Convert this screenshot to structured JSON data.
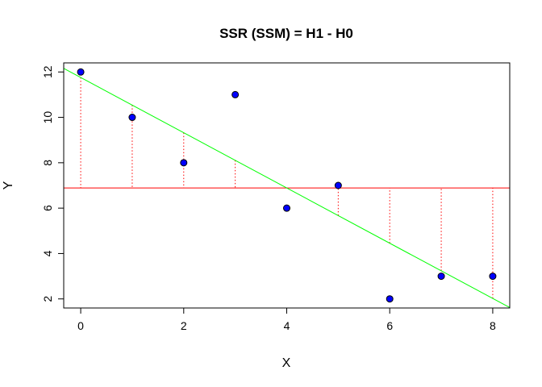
{
  "chart_data": {
    "type": "scatter",
    "title": "SSR (SSM) = H1 - H0",
    "xlabel": "X",
    "ylabel": "Y",
    "xlim": [
      -0.33,
      8.33
    ],
    "ylim": [
      1.6,
      12.4
    ],
    "x_ticks": [
      0,
      2,
      4,
      6,
      8
    ],
    "y_ticks": [
      2,
      4,
      6,
      8,
      10,
      12
    ],
    "grid": false,
    "legend": "none",
    "points": {
      "x": [
        0,
        1,
        2,
        3,
        4,
        5,
        6,
        7,
        8
      ],
      "y": [
        12,
        10,
        8,
        11,
        6,
        7,
        2,
        3,
        3
      ],
      "color": "#0000ff",
      "edge_color": "#000000"
    },
    "mean_line": {
      "y": 6.889,
      "color": "#ff0000"
    },
    "regression_line": {
      "intercept": 11.756,
      "slope": -1.217,
      "color": "#00ff00"
    },
    "residual_segments": {
      "color": "#ff0000",
      "style": "dotted"
    }
  }
}
